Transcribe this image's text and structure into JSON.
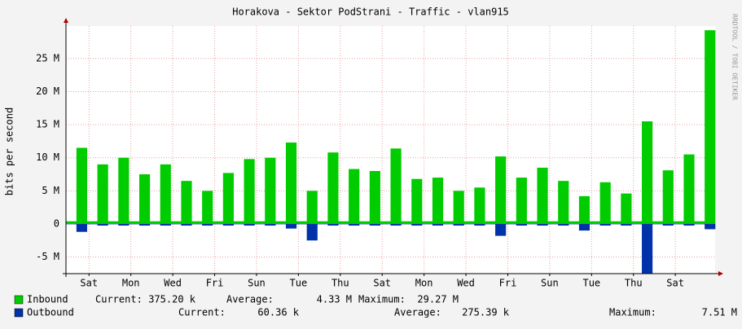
{
  "chart_data": {
    "type": "area",
    "title": "Horakova - Sektor PodStrani - Traffic - vlan915",
    "y_label": "bits per second",
    "watermark": "RRDTOOL / TOBI OETIKER",
    "x": [
      0,
      0.5,
      1,
      1.5,
      2,
      2.5,
      3,
      3.5,
      4,
      4.5,
      5,
      5.5,
      6,
      6.5,
      7,
      7.5,
      8,
      8.5,
      9,
      9.5,
      10,
      10.5,
      11,
      11.5,
      12,
      12.5,
      13,
      13.5,
      14,
      14.5,
      15,
      15.5,
      16,
      16.5,
      17,
      17.5,
      18,
      18.5,
      19,
      19.5,
      20,
      20.5,
      21,
      21.5,
      22,
      22.5,
      23,
      23.5,
      24,
      24.5,
      25,
      25.5,
      26,
      26.5,
      27,
      27.5,
      28,
      28.5,
      29,
      29.5,
      30,
      30.5
    ],
    "xlim": [
      0,
      31
    ],
    "xticks": [
      {
        "value": 1.1,
        "label": "Sat"
      },
      {
        "value": 3.1,
        "label": "Mon"
      },
      {
        "value": 5.1,
        "label": "Wed"
      },
      {
        "value": 7.1,
        "label": "Fri"
      },
      {
        "value": 9.1,
        "label": "Sun"
      },
      {
        "value": 11.1,
        "label": "Tue"
      },
      {
        "value": 13.1,
        "label": "Thu"
      },
      {
        "value": 15.1,
        "label": "Sat"
      },
      {
        "value": 17.1,
        "label": "Mon"
      },
      {
        "value": 19.1,
        "label": "Wed"
      },
      {
        "value": 21.1,
        "label": "Fri"
      },
      {
        "value": 23.1,
        "label": "Sun"
      },
      {
        "value": 25.1,
        "label": "Tue"
      },
      {
        "value": 27.1,
        "label": "Thu"
      },
      {
        "value": 29.1,
        "label": "Sat"
      }
    ],
    "ylim": [
      -7510000,
      29900000
    ],
    "yticks": [
      {
        "value": -5000000,
        "label": "-5 M"
      },
      0,
      {
        "value": 5000000,
        "label": "5 M"
      },
      {
        "value": 10000000,
        "label": "10 M"
      },
      {
        "value": 15000000,
        "label": "15 M"
      },
      {
        "value": 20000000,
        "label": "20 M"
      },
      {
        "value": 25000000,
        "label": "25 M"
      }
    ],
    "grid": true,
    "series": [
      {
        "name": "Inbound",
        "color": "#00cc00",
        "negative": false,
        "values": [
          400000,
          11500000,
          400000,
          9000000,
          400000,
          10000000,
          400000,
          7500000,
          400000,
          9000000,
          400000,
          6500000,
          400000,
          5000000,
          400000,
          7700000,
          400000,
          9800000,
          400000,
          10000000,
          400000,
          12300000,
          400000,
          5000000,
          400000,
          10800000,
          400000,
          8300000,
          400000,
          8000000,
          400000,
          11400000,
          400000,
          6800000,
          400000,
          7000000,
          400000,
          5000000,
          400000,
          5500000,
          400000,
          10200000,
          400000,
          7000000,
          400000,
          8500000,
          400000,
          6500000,
          400000,
          4200000,
          400000,
          6300000,
          400000,
          4600000,
          400000,
          15500000,
          400000,
          8100000,
          400000,
          10500000,
          400000,
          29270000
        ],
        "stats": [
          {
            "label": "Current:",
            "value": "375.20 k"
          },
          {
            "label": "Average:",
            "value": "4.33 M"
          },
          {
            "label": "Maximum:",
            "value": "29.27 M"
          }
        ]
      },
      {
        "name": "Outbound",
        "color": "#0033aa",
        "negative": true,
        "values": [
          50000,
          1200000,
          50000,
          250000,
          50000,
          250000,
          50000,
          250000,
          50000,
          250000,
          50000,
          250000,
          50000,
          250000,
          50000,
          250000,
          50000,
          250000,
          50000,
          250000,
          50000,
          700000,
          50000,
          2500000,
          50000,
          250000,
          50000,
          250000,
          50000,
          250000,
          50000,
          250000,
          50000,
          250000,
          50000,
          250000,
          50000,
          250000,
          50000,
          250000,
          50000,
          1800000,
          50000,
          250000,
          50000,
          250000,
          50000,
          250000,
          50000,
          1000000,
          50000,
          250000,
          50000,
          250000,
          50000,
          7510000,
          50000,
          250000,
          50000,
          250000,
          50000,
          800000
        ],
        "stats": [
          {
            "label": "Current:",
            "value": "60.36 k"
          },
          {
            "label": "Average:",
            "value": "275.39 k"
          },
          {
            "label": "Maximum:",
            "value": "7.51 M"
          }
        ]
      }
    ]
  }
}
